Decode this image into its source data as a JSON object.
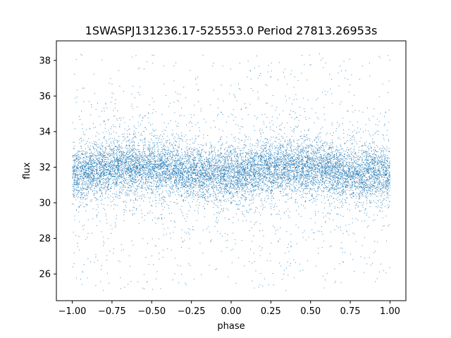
{
  "chart_data": {
    "type": "scatter",
    "title": "1SWASPJ131236.17-525553.0 Period 27813.26953s",
    "xlabel": "phase",
    "ylabel": "flux",
    "xlim": [
      -1.1,
      1.1
    ],
    "ylim": [
      24.5,
      39.1
    ],
    "xticks": [
      -1.0,
      -0.75,
      -0.5,
      -0.25,
      0.0,
      0.25,
      0.5,
      0.75,
      1.0
    ],
    "xtick_labels": [
      "−1.00",
      "−0.75",
      "−0.50",
      "−0.25",
      "0.00",
      "0.25",
      "0.50",
      "0.75",
      "1.00"
    ],
    "yticks": [
      26,
      28,
      30,
      32,
      34,
      36,
      38
    ],
    "ytick_labels": [
      "26",
      "28",
      "30",
      "32",
      "34",
      "36",
      "38"
    ],
    "grid": false,
    "marker_color": "#1f77b4",
    "series": [
      {
        "x_range": [
          -1.0,
          1.0
        ],
        "y_range": [
          25.0,
          38.4
        ],
        "mean_flux": 31.8,
        "semi_amplitude": 0.35,
        "profile": {
          "phase": [
            -1.0,
            -0.75,
            -0.5,
            -0.25,
            0.0,
            0.25,
            0.5,
            0.75,
            1.0
          ],
          "flux": [
            31.6,
            32.0,
            32.0,
            31.7,
            31.6,
            32.0,
            32.0,
            31.7,
            31.6
          ]
        }
      }
    ]
  }
}
